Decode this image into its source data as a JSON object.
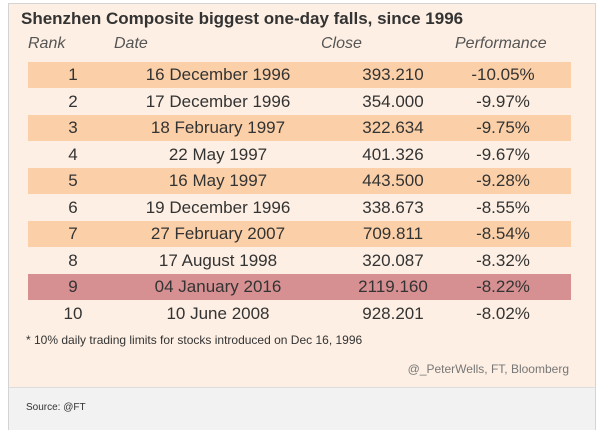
{
  "chart_data": {
    "type": "table",
    "title": "Shenzhen Composite biggest one-day falls, since 1996",
    "columns": [
      "Rank",
      "Date",
      "Close",
      "Performance"
    ],
    "rows": [
      {
        "rank": "1",
        "date": "16 December 1996",
        "close": "393.210",
        "performance": "-10.05%"
      },
      {
        "rank": "2",
        "date": "17 December 1996",
        "close": "354.000",
        "performance": "-9.97%"
      },
      {
        "rank": "3",
        "date": "18 February 1997",
        "close": "322.634",
        "performance": "-9.75%"
      },
      {
        "rank": "4",
        "date": "22 May 1997",
        "close": "401.326",
        "performance": "-9.67%"
      },
      {
        "rank": "5",
        "date": "16 May 1997",
        "close": "443.500",
        "performance": "-9.28%"
      },
      {
        "rank": "6",
        "date": "19 December 1996",
        "close": "338.673",
        "performance": "-8.55%"
      },
      {
        "rank": "7",
        "date": "27 February 2007",
        "close": "709.811",
        "performance": "-8.54%"
      },
      {
        "rank": "8",
        "date": "17 August 1998",
        "close": "320.087",
        "performance": "-8.32%"
      },
      {
        "rank": "9",
        "date": "04 January 2016",
        "close": "2119.160",
        "performance": "-8.22%"
      },
      {
        "rank": "10",
        "date": "10 June 2008",
        "close": "928.201",
        "performance": "-8.02%"
      }
    ],
    "highlighted_rank": "9",
    "footnote": "* 10% daily trading limits for stocks introduced on Dec 16, 1996",
    "credit": "@_PeterWells, FT, Bloomberg"
  },
  "source": "Source: @FT",
  "colors": {
    "background": "#fdefe3",
    "band": "#fbd0a8",
    "highlight": "#d69092",
    "text": "#333333"
  }
}
